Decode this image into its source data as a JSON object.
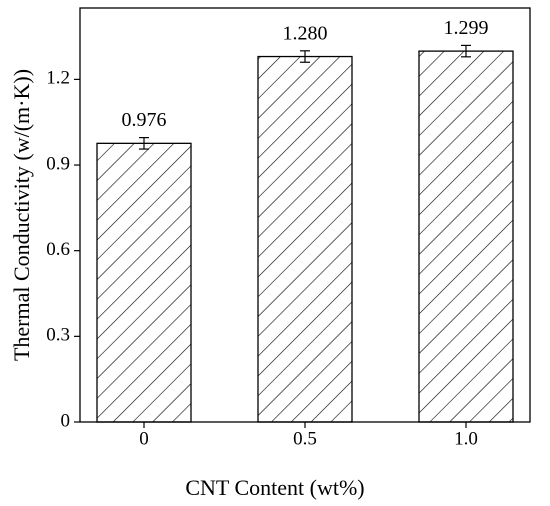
{
  "chart_data": {
    "type": "bar",
    "xlabel": "CNT Content (wt%)",
    "ylabel": "Thermal Conductivity  (w/(m·K))",
    "categories": [
      "0",
      "0.5",
      "1.0"
    ],
    "values": [
      0.976,
      1.28,
      1.299
    ],
    "value_labels": [
      "0.976",
      "1.280",
      "1.299"
    ],
    "errors": [
      0.02,
      0.02,
      0.02
    ],
    "color": "#000000",
    "ylim": [
      0,
      1.45
    ],
    "yticks": [
      0,
      0.3,
      0.6,
      0.9,
      1.2
    ]
  }
}
